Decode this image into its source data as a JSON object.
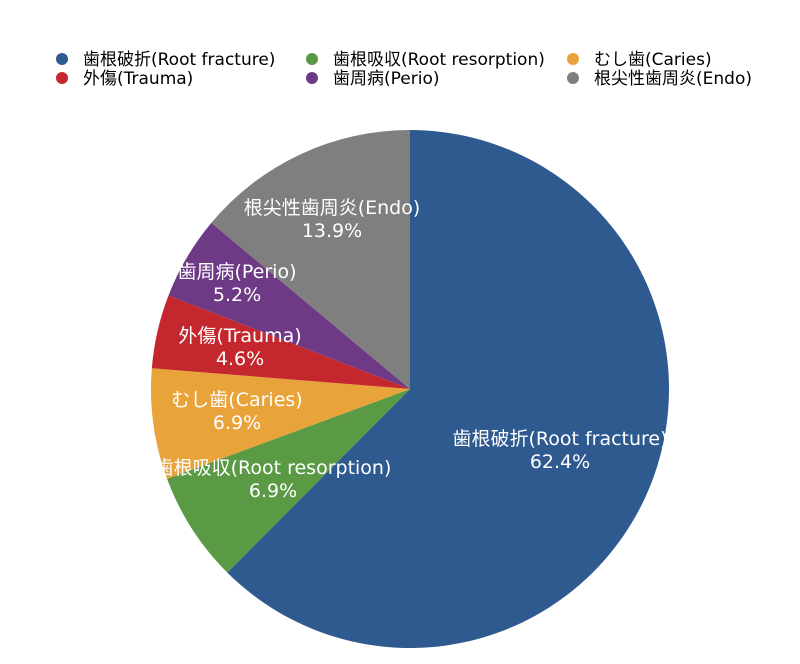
{
  "chart_data": {
    "type": "pie",
    "title": "",
    "legend_position": "top",
    "start_angle_deg": 0,
    "direction": "clockwise",
    "slices": [
      {
        "name": "歯根破折(Root fracture)",
        "label": "歯根破折(Root fracture)",
        "value": 62.4,
        "percent_text": "62.4%",
        "color": "#2e5a8f"
      },
      {
        "name": "歯根吸収(Root resorption)",
        "label": "歯根吸収(Root resorption)",
        "value": 6.9,
        "percent_text": "6.9%",
        "color": "#5b9a45"
      },
      {
        "name": "むし歯(Caries)",
        "label": "むし歯(Caries)",
        "value": 6.9,
        "percent_text": "6.9%",
        "color": "#e8a33a"
      },
      {
        "name": "外傷(Trauma)",
        "label": "外傷(Trauma)",
        "value": 4.6,
        "percent_text": "4.6%",
        "color": "#c4282e"
      },
      {
        "name": "歯周病(Perio)",
        "label": "歯周病(Perio)",
        "value": 5.2,
        "percent_text": "5.2%",
        "color": "#6e3a86"
      },
      {
        "name": "根尖性歯周炎(Endo)",
        "label": "根尖性歯周炎(Endo)",
        "value": 13.9,
        "percent_text": "13.9%",
        "color": "#7f7f7f"
      }
    ],
    "legend_order": [
      0,
      1,
      2,
      3,
      4,
      5
    ]
  }
}
